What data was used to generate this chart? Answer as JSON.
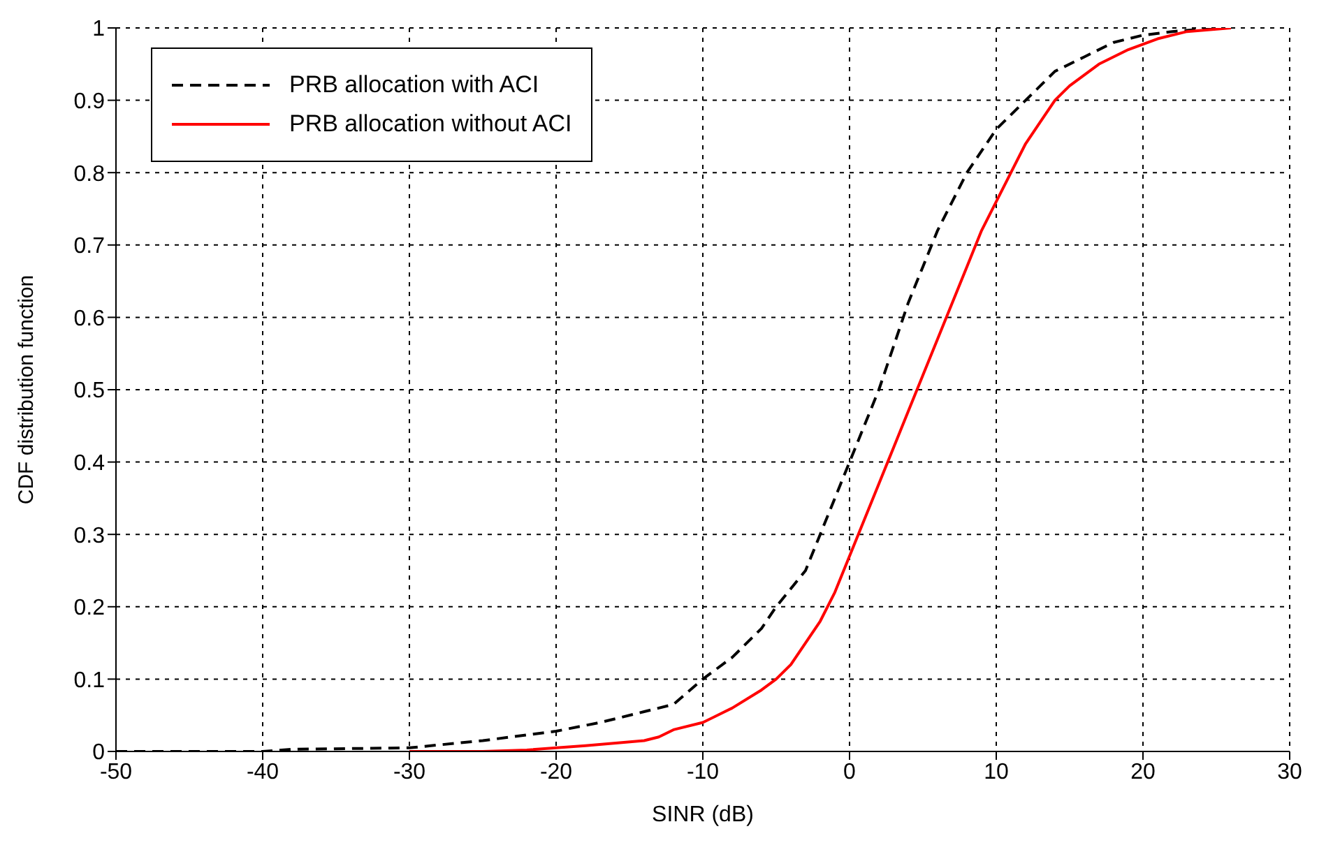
{
  "chart_data": {
    "type": "line",
    "xlabel": "SINR (dB)",
    "ylabel": "CDF  distribution function",
    "xlim": [
      -50,
      30
    ],
    "xticks": [
      -50,
      -40,
      -30,
      -20,
      -10,
      0,
      10,
      20,
      30
    ],
    "ylim": [
      0,
      1
    ],
    "yticks": [
      0,
      0.1,
      0.2,
      0.3,
      0.4,
      0.5,
      0.6,
      0.7,
      0.8,
      0.9,
      1
    ],
    "grid": true,
    "legend": "top left",
    "marker": "none",
    "series": [
      {
        "name": "PRB allocation with ACI",
        "color": "#000000",
        "line_style": "dashed",
        "x": [
          -50,
          -40,
          -38,
          -30,
          -25,
          -20,
          -17,
          -14,
          -12,
          -10,
          -8,
          -6,
          -5,
          -3,
          -2,
          -1,
          0,
          1,
          2,
          3,
          4,
          5,
          6,
          7,
          8,
          9,
          10,
          11,
          12,
          13,
          14,
          16,
          18,
          20,
          22,
          25
        ],
        "values": [
          0,
          0,
          0.003,
          0.005,
          0.015,
          0.028,
          0.04,
          0.055,
          0.065,
          0.1,
          0.13,
          0.17,
          0.2,
          0.25,
          0.3,
          0.35,
          0.4,
          0.45,
          0.5,
          0.56,
          0.62,
          0.67,
          0.72,
          0.76,
          0.8,
          0.83,
          0.86,
          0.88,
          0.9,
          0.92,
          0.94,
          0.96,
          0.98,
          0.99,
          0.995,
          1
        ]
      },
      {
        "name": "PRB allocation without ACI",
        "color": "#ff0000",
        "line_style": "solid",
        "x": [
          -30,
          -25,
          -22,
          -18,
          -14,
          -13,
          -12,
          -10,
          -8,
          -6,
          -5,
          -4,
          -3,
          -2,
          -1,
          0,
          1,
          2,
          3,
          4,
          5,
          6,
          7,
          8,
          9,
          10,
          11,
          12,
          13,
          14,
          15,
          17,
          19,
          21,
          23,
          26
        ],
        "values": [
          0,
          0,
          0.002,
          0.008,
          0.015,
          0.02,
          0.03,
          0.04,
          0.06,
          0.085,
          0.1,
          0.12,
          0.15,
          0.18,
          0.22,
          0.27,
          0.32,
          0.37,
          0.42,
          0.47,
          0.52,
          0.57,
          0.62,
          0.67,
          0.72,
          0.76,
          0.8,
          0.84,
          0.87,
          0.9,
          0.92,
          0.95,
          0.97,
          0.985,
          0.995,
          1
        ]
      }
    ]
  }
}
